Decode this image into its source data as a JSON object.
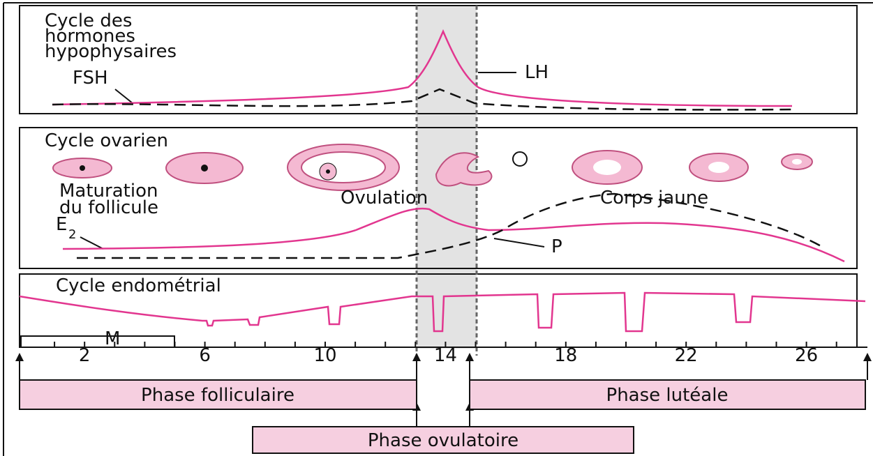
{
  "hormones": {
    "title": [
      "Cycle des",
      "hormones",
      "hypophysaires"
    ],
    "fsh": "FSH",
    "lh": "LH"
  },
  "ovarian": {
    "title": "Cycle ovarien",
    "maturation": [
      "Maturation",
      "du follicule"
    ],
    "ovulation": "Ovulation",
    "corpus": "Corps jaune",
    "e2": {
      "base": "E",
      "sub": "2"
    },
    "p": "P"
  },
  "endometrial": {
    "title": "Cycle endométrial",
    "m": "M"
  },
  "axis": {
    "ticks": [
      "2",
      "6",
      "10",
      "14",
      "18",
      "22",
      "26"
    ]
  },
  "phases": {
    "follicular": "Phase folliculaire",
    "luteal": "Phase lutéale",
    "ovulatory": "Phase ovulatoire"
  }
}
